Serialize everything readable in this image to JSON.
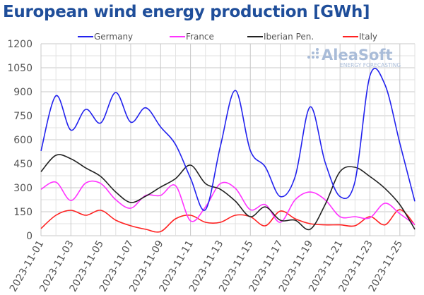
{
  "chart_data": {
    "type": "line",
    "title": "European wind energy production [GWh]",
    "xlabel": "",
    "ylabel": "",
    "ylim": [
      0,
      1200
    ],
    "yticks": [
      0,
      150,
      300,
      450,
      600,
      750,
      900,
      1050,
      1200
    ],
    "grid": true,
    "legend_position": "top",
    "x": [
      "2023-11-01",
      "2023-11-02",
      "2023-11-03",
      "2023-11-04",
      "2023-11-05",
      "2023-11-06",
      "2023-11-07",
      "2023-11-08",
      "2023-11-09",
      "2023-11-10",
      "2023-11-11",
      "2023-11-12",
      "2023-11-13",
      "2023-11-14",
      "2023-11-15",
      "2023-11-16",
      "2023-11-17",
      "2023-11-18",
      "2023-11-19",
      "2023-11-20",
      "2023-11-21",
      "2023-11-22",
      "2023-11-23",
      "2023-11-24",
      "2023-11-25",
      "2023-11-26"
    ],
    "xtick_labels": [
      "2023-11-01",
      "2023-11-03",
      "2023-11-05",
      "2023-11-07",
      "2023-11-09",
      "2023-11-11",
      "2023-11-13",
      "2023-11-15",
      "2023-11-17",
      "2023-11-19",
      "2023-11-21",
      "2023-11-23",
      "2023-11-25"
    ],
    "series": [
      {
        "name": "Germany",
        "color": "#2222ee",
        "values": [
          530,
          875,
          660,
          790,
          705,
          895,
          710,
          800,
          680,
          570,
          360,
          163,
          560,
          908,
          533,
          430,
          245,
          370,
          805,
          460,
          245,
          340,
          1000,
          945,
          578,
          215
        ]
      },
      {
        "name": "France",
        "color": "#ff33ff",
        "values": [
          290,
          335,
          220,
          330,
          326,
          225,
          172,
          252,
          252,
          313,
          93,
          180,
          326,
          296,
          163,
          194,
          84,
          225,
          273,
          225,
          119,
          119,
          112,
          203,
          137,
          70
        ]
      },
      {
        "name": "Iberian Pen.",
        "color": "#222222",
        "values": [
          400,
          503,
          481,
          423,
          370,
          273,
          208,
          247,
          304,
          357,
          441,
          326,
          290,
          216,
          119,
          180,
          97,
          97,
          40,
          194,
          401,
          428,
          370,
          296,
          194,
          40
        ]
      },
      {
        "name": "Italy",
        "color": "#ff2222",
        "values": [
          45,
          128,
          159,
          128,
          159,
          97,
          62,
          40,
          26,
          106,
          128,
          84,
          84,
          128,
          119,
          62,
          154,
          106,
          75,
          68,
          68,
          62,
          119,
          68,
          163,
          68
        ]
      }
    ]
  },
  "watermark": {
    "brand": "AleaSoft",
    "tagline": "ENERGY FORECASTING"
  }
}
